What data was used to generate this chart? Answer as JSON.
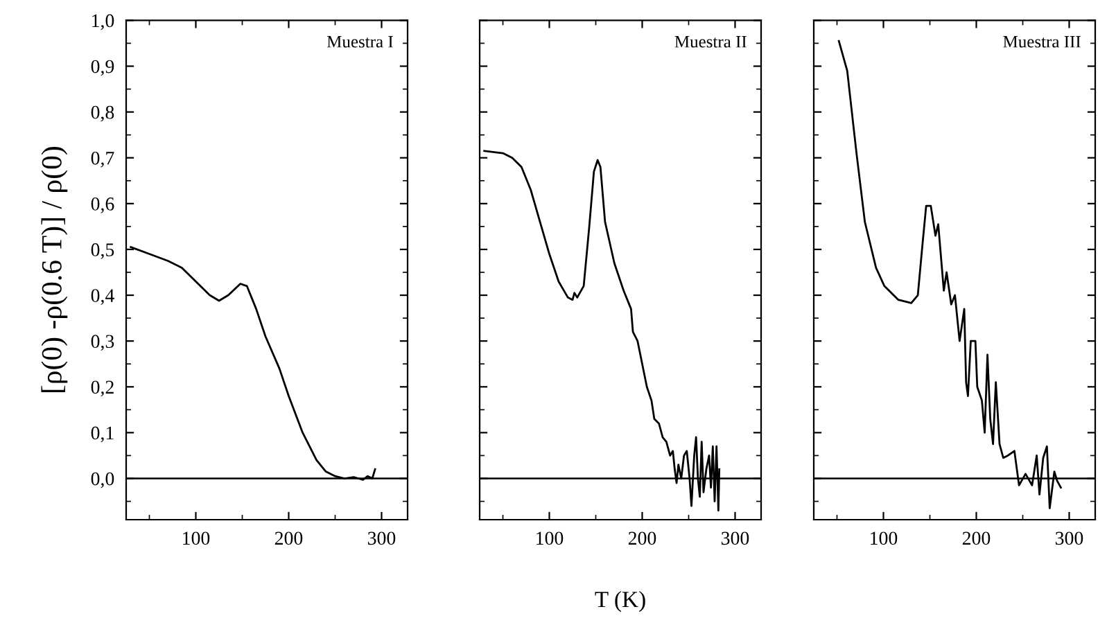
{
  "chart_data": [
    {
      "type": "line",
      "ylabel": "[ρ(0) -ρ(0.6 T)] / ρ(0)",
      "annotations": [
        "Muestra I"
      ],
      "xlim": [
        25,
        328
      ],
      "ylim": [
        -0.09,
        1.0
      ],
      "xticks": [
        100,
        200,
        300
      ],
      "yticks": [
        {
          "value": 0.0,
          "label": "0,0"
        },
        {
          "value": 0.1,
          "label": "0,1"
        },
        {
          "value": 0.2,
          "label": "0,2"
        },
        {
          "value": 0.3,
          "label": "0,3"
        },
        {
          "value": 0.4,
          "label": "0,4"
        },
        {
          "value": 0.5,
          "label": "0,5"
        },
        {
          "value": 0.6,
          "label": "0,6"
        },
        {
          "value": 0.7,
          "label": "0,7"
        },
        {
          "value": 0.8,
          "label": "0,8"
        },
        {
          "value": 0.9,
          "label": "0,9"
        },
        {
          "value": 1.0,
          "label": "1,0"
        }
      ],
      "ref_lines": [
        {
          "axis": "y",
          "value": 0,
          "color": "#000000"
        }
      ],
      "series": [
        {
          "color": "#000000",
          "x": [
            30,
            50,
            70,
            85,
            100,
            115,
            125,
            135,
            148,
            155,
            165,
            175,
            190,
            200,
            215,
            230,
            240,
            250,
            260,
            270,
            280,
            285,
            290,
            293
          ],
          "values": [
            0.505,
            0.49,
            0.475,
            0.46,
            0.43,
            0.4,
            0.388,
            0.4,
            0.425,
            0.42,
            0.37,
            0.31,
            0.24,
            0.18,
            0.1,
            0.04,
            0.015,
            0.005,
            0.0,
            0.003,
            -0.003,
            0.005,
            0.0,
            0.02
          ]
        }
      ]
    },
    {
      "type": "line",
      "xlabel": "T (K)",
      "annotations": [
        "Muestra II"
      ],
      "xlim": [
        25,
        328
      ],
      "ylim": [
        -0.09,
        1.0
      ],
      "xticks": [
        100,
        200,
        300
      ],
      "yticks": [
        0.0,
        0.1,
        0.2,
        0.3,
        0.4,
        0.5,
        0.6,
        0.7,
        0.8,
        0.9,
        1.0
      ],
      "tick_labels": "x",
      "ref_lines": [
        {
          "axis": "y",
          "value": 0,
          "color": "#000000"
        }
      ],
      "series": [
        {
          "color": "#000000",
          "x": [
            30,
            50,
            60,
            70,
            80,
            90,
            100,
            110,
            120,
            125,
            127,
            130,
            137,
            143,
            148,
            152,
            155,
            160,
            170,
            180,
            188,
            190,
            195,
            200,
            205,
            210,
            213,
            218,
            222,
            226,
            230,
            233,
            235,
            237,
            239,
            242,
            245,
            248,
            251,
            253,
            256,
            258,
            260,
            262,
            264,
            266,
            269,
            272,
            274,
            276,
            278,
            280,
            282,
            283
          ],
          "values": [
            0.715,
            0.71,
            0.7,
            0.68,
            0.63,
            0.56,
            0.49,
            0.43,
            0.395,
            0.39,
            0.405,
            0.395,
            0.42,
            0.55,
            0.67,
            0.695,
            0.68,
            0.56,
            0.47,
            0.41,
            0.37,
            0.32,
            0.3,
            0.25,
            0.2,
            0.17,
            0.13,
            0.12,
            0.09,
            0.08,
            0.05,
            0.06,
            0.02,
            -0.01,
            0.03,
            0.0,
            0.05,
            0.06,
            0.0,
            -0.06,
            0.05,
            0.09,
            0.0,
            -0.04,
            0.08,
            -0.03,
            0.02,
            0.05,
            -0.02,
            0.07,
            -0.05,
            0.07,
            -0.07,
            0.02
          ]
        }
      ]
    },
    {
      "type": "line",
      "annotations": [
        "Muestra III"
      ],
      "xlim": [
        25,
        328
      ],
      "ylim": [
        -0.09,
        1.0
      ],
      "xticks": [
        100,
        200,
        300
      ],
      "yticks": [
        0.0,
        0.1,
        0.2,
        0.3,
        0.4,
        0.5,
        0.6,
        0.7,
        0.8,
        0.9,
        1.0
      ],
      "tick_labels": "x",
      "ref_lines": [
        {
          "axis": "y",
          "value": 0,
          "color": "#000000"
        }
      ],
      "series": [
        {
          "color": "#000000",
          "x": [
            52,
            61,
            71,
            80,
            92,
            101,
            116,
            130,
            137,
            142,
            146,
            151,
            156,
            159,
            165,
            168,
            173,
            177,
            182,
            187,
            189,
            191,
            194,
            199,
            201,
            206,
            209,
            212,
            215,
            218,
            221,
            225,
            229,
            234,
            241,
            246,
            253,
            260,
            265,
            268,
            272,
            276,
            279,
            284,
            287,
            291
          ],
          "values": [
            0.955,
            0.89,
            0.71,
            0.56,
            0.46,
            0.42,
            0.39,
            0.383,
            0.4,
            0.51,
            0.595,
            0.595,
            0.53,
            0.555,
            0.41,
            0.45,
            0.38,
            0.4,
            0.3,
            0.37,
            0.21,
            0.18,
            0.3,
            0.3,
            0.2,
            0.17,
            0.1,
            0.27,
            0.13,
            0.075,
            0.21,
            0.075,
            0.045,
            0.05,
            0.06,
            -0.015,
            0.01,
            -0.015,
            0.05,
            -0.035,
            0.045,
            0.07,
            -0.065,
            0.015,
            -0.005,
            -0.02
          ]
        }
      ]
    }
  ]
}
